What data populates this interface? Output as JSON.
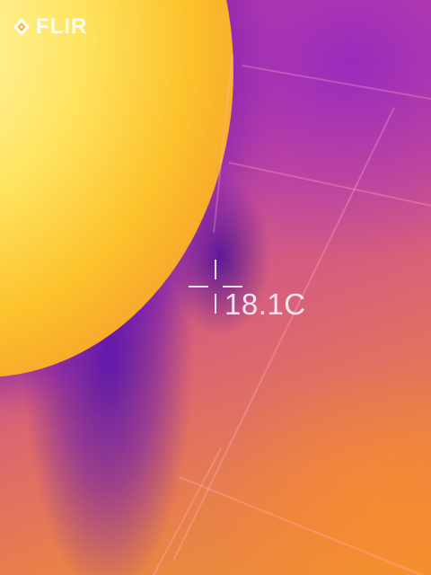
{
  "logo": {
    "text": "FLIR",
    "icon": "flir-diamond-logo-icon"
  },
  "measurement": {
    "spot_temperature": "18.1C",
    "icon": "crosshair-icon"
  },
  "colors": {
    "hot": "#ffe460",
    "warm": "#f0922e",
    "mid": "#c24a9e",
    "cold": "#5a1aa8",
    "overlay_text": "#ffffff"
  }
}
